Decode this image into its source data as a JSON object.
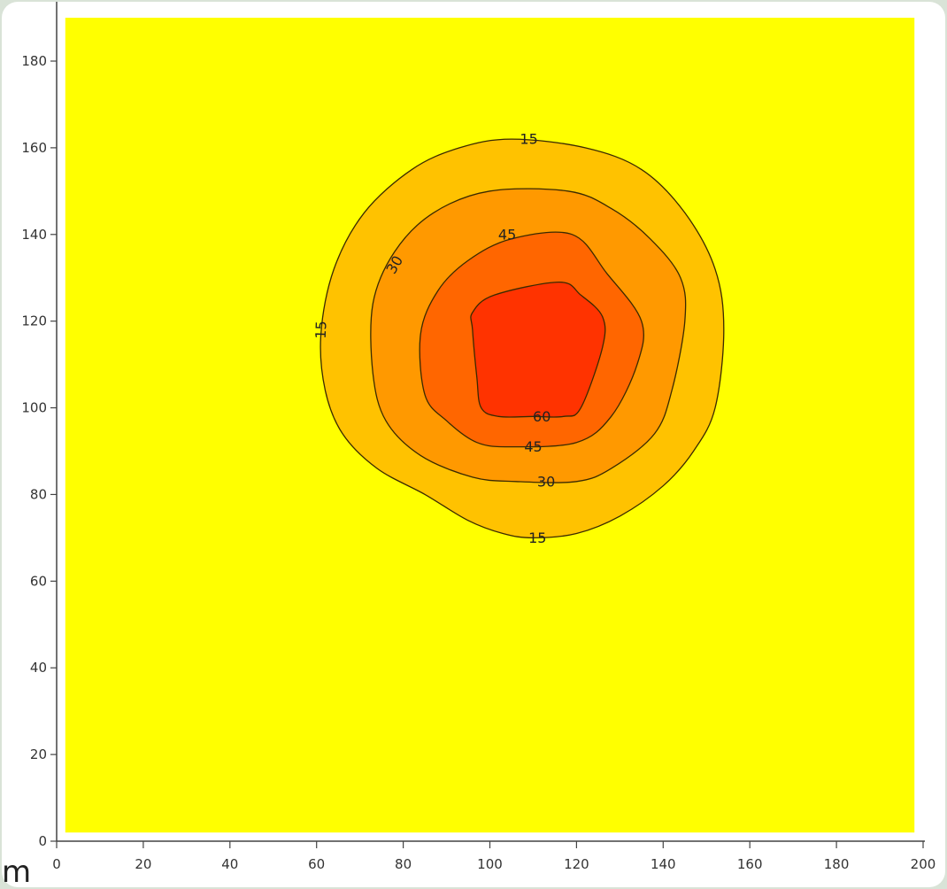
{
  "chart_data": {
    "type": "contour",
    "title": "",
    "xlabel": "",
    "ylabel": "",
    "unit_label": "m",
    "xlim": [
      0,
      200
    ],
    "ylim": [
      0,
      190
    ],
    "x_ticks": [
      0,
      20,
      40,
      60,
      80,
      100,
      120,
      140,
      160,
      180,
      200
    ],
    "y_ticks": [
      0,
      20,
      40,
      60,
      80,
      100,
      120,
      140,
      160,
      180
    ],
    "grid": false,
    "legend": "none",
    "plot_area_extent": {
      "x": [
        2,
        198
      ],
      "y": [
        2,
        190
      ]
    },
    "background_color": "#ffff00",
    "levels": [
      {
        "level": 15,
        "fill": "#ffc200",
        "points": [
          [
            105,
            162
          ],
          [
            122,
            160
          ],
          [
            135,
            155
          ],
          [
            145,
            145
          ],
          [
            152,
            132
          ],
          [
            154,
            118
          ],
          [
            152,
            100
          ],
          [
            147,
            90
          ],
          [
            140,
            82
          ],
          [
            130,
            75
          ],
          [
            120,
            71
          ],
          [
            110,
            70
          ],
          [
            103,
            71
          ],
          [
            95,
            74
          ],
          [
            85,
            80
          ],
          [
            74,
            86
          ],
          [
            66,
            94
          ],
          [
            62,
            104
          ],
          [
            61,
            117
          ],
          [
            64,
            132
          ],
          [
            71,
            145
          ],
          [
            82,
            155
          ],
          [
            93,
            160
          ]
        ]
      },
      {
        "level": 30,
        "fill": "#ff9900",
        "points": [
          [
            100,
            150
          ],
          [
            118,
            150
          ],
          [
            128,
            146
          ],
          [
            137,
            139
          ],
          [
            144,
            130
          ],
          [
            145,
            120
          ],
          [
            142,
            104
          ],
          [
            138,
            94
          ],
          [
            128,
            86
          ],
          [
            120,
            83
          ],
          [
            106,
            83
          ],
          [
            96,
            84
          ],
          [
            84,
            89
          ],
          [
            76,
            97
          ],
          [
            73,
            108
          ],
          [
            73,
            124
          ],
          [
            78,
            136
          ],
          [
            87,
            145
          ]
        ]
      },
      {
        "level": 45,
        "fill": "#ff6600",
        "points": [
          [
            105,
            139
          ],
          [
            119,
            140
          ],
          [
            127,
            131
          ],
          [
            135,
            120
          ],
          [
            134,
            110
          ],
          [
            128,
            98
          ],
          [
            120,
            92
          ],
          [
            105,
            91
          ],
          [
            97,
            92
          ],
          [
            90,
            97
          ],
          [
            85,
            103
          ],
          [
            84,
            117
          ],
          [
            88,
            127
          ],
          [
            95,
            134
          ]
        ]
      },
      {
        "level": 60,
        "fill": "#ff3300",
        "points": [
          [
            101,
            126
          ],
          [
            116,
            129
          ],
          [
            121,
            126
          ],
          [
            126,
            121
          ],
          [
            126,
            114
          ],
          [
            121,
            100
          ],
          [
            117,
            98
          ],
          [
            110,
            98
          ],
          [
            102,
            98
          ],
          [
            98,
            100
          ],
          [
            97,
            107
          ],
          [
            96,
            118
          ],
          [
            96,
            122
          ]
        ]
      }
    ],
    "contour_labels": [
      {
        "text": "15",
        "x": 109,
        "y": 162,
        "rotation": 0
      },
      {
        "text": "15",
        "x": 61,
        "y": 118,
        "rotation": -88
      },
      {
        "text": "15",
        "x": 111,
        "y": 70,
        "rotation": 0
      },
      {
        "text": "30",
        "x": 78,
        "y": 133,
        "rotation": -60
      },
      {
        "text": "30",
        "x": 113,
        "y": 83,
        "rotation": 0
      },
      {
        "text": "45",
        "x": 104,
        "y": 140,
        "rotation": 0
      },
      {
        "text": "45",
        "x": 110,
        "y": 91,
        "rotation": 0
      },
      {
        "text": "60",
        "x": 112,
        "y": 98,
        "rotation": 0
      }
    ]
  }
}
